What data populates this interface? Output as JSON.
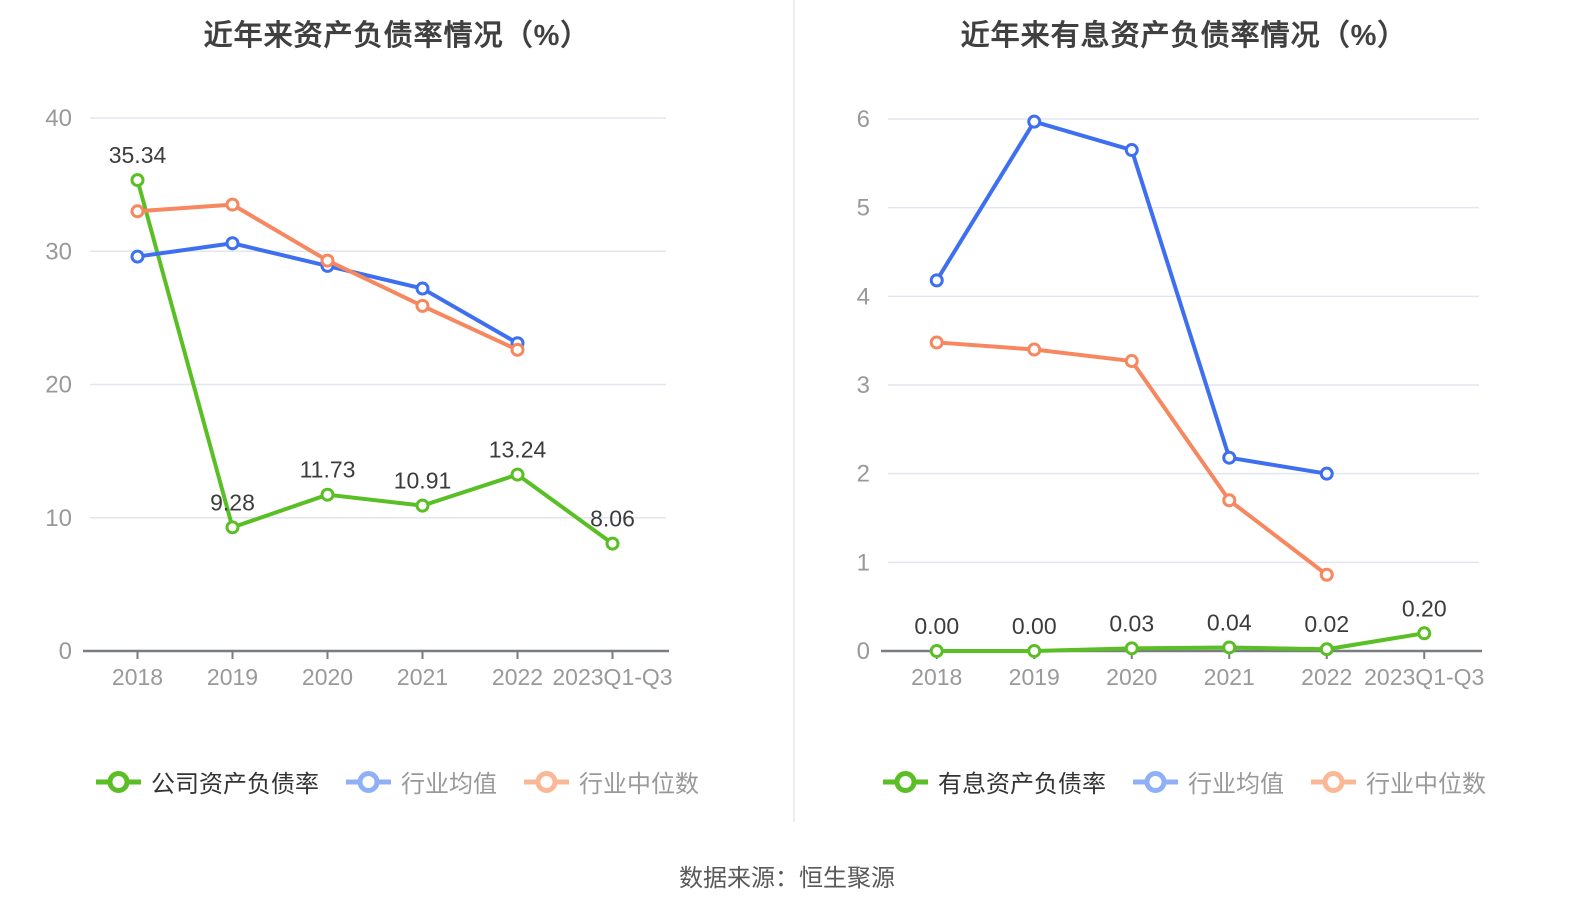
{
  "page": {
    "background": "#ffffff",
    "footer": "数据来源：恒生聚源"
  },
  "style": {
    "grid_color": "#e2e6f0",
    "axis_color": "#797d82",
    "tick_label_color": "#999999",
    "title_color": "#404040",
    "data_label_color": "#3c3c3c",
    "footer_color": "#595959",
    "divider_color": "#ececec"
  },
  "chart_data": [
    {
      "type": "line",
      "title": "近年来资产负债率情况（%）",
      "xlabel": "",
      "ylabel": "",
      "categories": [
        "2018",
        "2019",
        "2020",
        "2021",
        "2022",
        "2023Q1-Q3"
      ],
      "ylim": [
        0,
        40
      ],
      "yticks": [
        0,
        10,
        20,
        30,
        40
      ],
      "grid": true,
      "legend_position": "bottom",
      "series": [
        {
          "name": "公司资产负债率",
          "color": "#5abe25",
          "legend_color": "#5abe25",
          "legend_text_color": "#333333",
          "values": [
            35.34,
            9.28,
            11.73,
            10.91,
            13.24,
            8.06
          ],
          "labels": [
            "35.34",
            "9.28",
            "11.73",
            "10.91",
            "13.24",
            "8.06"
          ]
        },
        {
          "name": "行业均值",
          "color": "#3d6ff0",
          "legend_color": "#8fb0f6",
          "legend_text_color": "#999999",
          "values": [
            29.6,
            30.6,
            28.9,
            27.2,
            23.1,
            null
          ],
          "labels": null
        },
        {
          "name": "行业中位数",
          "color": "#f6875f",
          "legend_color": "#fab896",
          "legend_text_color": "#999999",
          "values": [
            33.0,
            33.5,
            29.3,
            25.9,
            22.6,
            null
          ],
          "labels": null
        }
      ]
    },
    {
      "type": "line",
      "title": "近年来有息资产负债率情况（%）",
      "xlabel": "",
      "ylabel": "",
      "categories": [
        "2018",
        "2019",
        "2020",
        "2021",
        "2022",
        "2023Q1-Q3"
      ],
      "ylim": [
        0,
        6
      ],
      "yticks": [
        0,
        1,
        2,
        3,
        4,
        5,
        6
      ],
      "grid": true,
      "legend_position": "bottom",
      "series": [
        {
          "name": "有息资产负债率",
          "color": "#5abe25",
          "legend_color": "#5abe25",
          "legend_text_color": "#333333",
          "values": [
            0.0,
            0.0,
            0.03,
            0.04,
            0.02,
            0.2
          ],
          "labels": [
            "0.00",
            "0.00",
            "0.03",
            "0.04",
            "0.02",
            "0.20"
          ]
        },
        {
          "name": "行业均值",
          "color": "#3d6ff0",
          "legend_color": "#8fb0f6",
          "legend_text_color": "#999999",
          "values": [
            4.18,
            5.97,
            5.65,
            2.18,
            2.0,
            null
          ],
          "labels": null
        },
        {
          "name": "行业中位数",
          "color": "#f6875f",
          "legend_color": "#fab896",
          "legend_text_color": "#999999",
          "values": [
            3.48,
            3.4,
            3.27,
            1.7,
            0.86,
            null
          ],
          "labels": null
        }
      ]
    }
  ]
}
